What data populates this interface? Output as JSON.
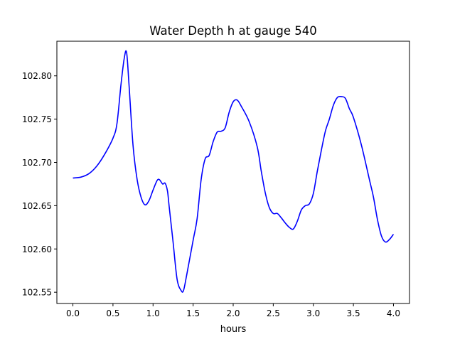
{
  "chart_data": {
    "type": "line",
    "title": "Water Depth h at gauge 540",
    "xlabel": "hours",
    "ylabel": "",
    "xlim": [
      -0.2,
      4.2
    ],
    "ylim": [
      102.537,
      102.84
    ],
    "xticks": [
      0.0,
      0.5,
      1.0,
      1.5,
      2.0,
      2.5,
      3.0,
      3.5,
      4.0
    ],
    "xtick_labels": [
      "0.0",
      "0.5",
      "1.0",
      "1.5",
      "2.0",
      "2.5",
      "3.0",
      "3.5",
      "4.0"
    ],
    "yticks": [
      102.55,
      102.6,
      102.65,
      102.7,
      102.75,
      102.8
    ],
    "ytick_labels": [
      "102.55",
      "102.60",
      "102.65",
      "102.70",
      "102.75",
      "102.80"
    ],
    "grid": false,
    "series": [
      {
        "color": "#0000ff",
        "x": [
          0.0,
          0.1,
          0.2,
          0.3,
          0.4,
          0.5,
          0.55,
          0.6,
          0.64,
          0.67,
          0.7,
          0.75,
          0.8,
          0.85,
          0.9,
          0.95,
          1.0,
          1.05,
          1.08,
          1.12,
          1.15,
          1.18,
          1.2,
          1.25,
          1.3,
          1.35,
          1.38,
          1.42,
          1.5,
          1.55,
          1.6,
          1.65,
          1.7,
          1.75,
          1.8,
          1.85,
          1.9,
          1.95,
          2.0,
          2.05,
          2.1,
          2.2,
          2.3,
          2.35,
          2.4,
          2.45,
          2.5,
          2.55,
          2.6,
          2.65,
          2.7,
          2.75,
          2.8,
          2.85,
          2.9,
          2.95,
          3.0,
          3.05,
          3.1,
          3.15,
          3.2,
          3.25,
          3.3,
          3.35,
          3.4,
          3.45,
          3.5,
          3.6,
          3.7,
          3.75,
          3.8,
          3.85,
          3.9,
          3.95,
          4.0
        ],
        "y": [
          102.682,
          102.683,
          102.687,
          102.696,
          102.71,
          102.728,
          102.745,
          102.79,
          102.82,
          102.827,
          102.79,
          102.72,
          102.681,
          102.66,
          102.651,
          102.656,
          102.668,
          102.679,
          102.68,
          102.675,
          102.676,
          102.667,
          102.65,
          102.608,
          102.565,
          102.552,
          102.552,
          102.57,
          102.61,
          102.635,
          102.68,
          102.704,
          102.708,
          102.724,
          102.735,
          102.736,
          102.74,
          102.758,
          102.77,
          102.772,
          102.765,
          102.747,
          102.718,
          102.69,
          102.665,
          102.648,
          102.641,
          102.641,
          102.636,
          102.63,
          102.625,
          102.623,
          102.632,
          102.645,
          102.65,
          102.652,
          102.664,
          102.69,
          102.714,
          102.736,
          102.75,
          102.766,
          102.775,
          102.776,
          102.774,
          102.762,
          102.752,
          102.72,
          102.68,
          102.66,
          102.634,
          102.615,
          102.608,
          102.611,
          102.617
        ]
      }
    ]
  }
}
